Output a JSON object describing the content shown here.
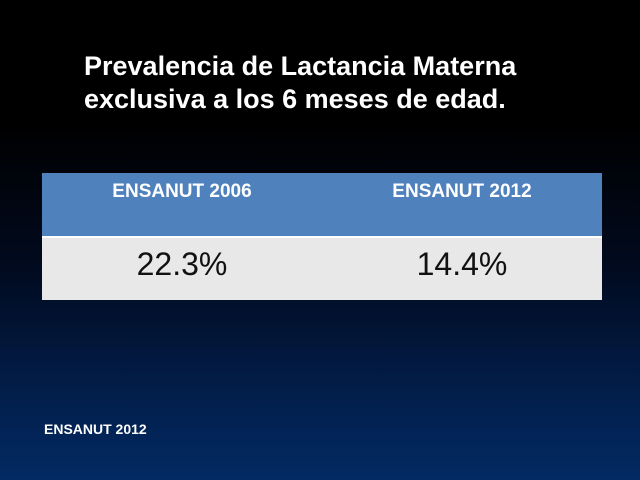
{
  "slide": {
    "title_line1": "Prevalencia de Lactancia Materna",
    "title_line2": "exclusiva a los 6 meses de edad."
  },
  "table": {
    "headers": [
      "ENSANUT 2006",
      "ENSANUT 2012"
    ],
    "values": [
      "22.3%",
      "14.4%"
    ]
  },
  "footer": {
    "source": "ENSANUT 2012"
  },
  "colors": {
    "header_background": "#4f81bd",
    "row_background": "#e8e8e8",
    "slide_background_top": "#000000",
    "slide_background_bottom": "#032a63"
  }
}
